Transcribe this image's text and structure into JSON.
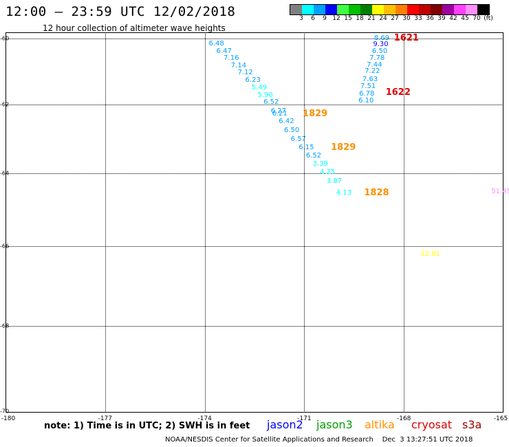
{
  "header": {
    "title": "12:00 – 23:59 UTC 12/02/2018",
    "subtitle": "12 hour collection of altimeter wave heights"
  },
  "legend": {
    "colors": [
      "#808080",
      "#00ffff",
      "#00a0ff",
      "#0000ff",
      "#40ff40",
      "#00c000",
      "#008000",
      "#ffff00",
      "#ffc000",
      "#ff8000",
      "#ff0000",
      "#c00000",
      "#800000",
      "#a000a0",
      "#ff40ff",
      "#ff90ff",
      "#000000"
    ],
    "labels": [
      "3",
      "6",
      "9",
      "12",
      "15",
      "18",
      "21",
      "24",
      "27",
      "30",
      "33",
      "36",
      "39",
      "42",
      "45",
      "70",
      "(ft)"
    ]
  },
  "axes": {
    "lat_labels": [
      "-60",
      "-62",
      "-64",
      "-66",
      "-68",
      "-70"
    ],
    "lon_labels": [
      "-180",
      "-177",
      "-174",
      "-171",
      "-168",
      "-165"
    ]
  },
  "observations": [
    {
      "v": "6.48",
      "lat": -60.16,
      "lon": -173.63,
      "c": "#00a0ff"
    },
    {
      "v": "6.47",
      "lat": -60.39,
      "lon": -173.4,
      "c": "#00a0ff"
    },
    {
      "v": "7.16",
      "lat": -60.61,
      "lon": -173.18,
      "c": "#00a0ff"
    },
    {
      "v": "7.14",
      "lat": -60.83,
      "lon": -172.96,
      "c": "#00a0ff"
    },
    {
      "v": "7.12",
      "lat": -61.05,
      "lon": -172.76,
      "c": "#00a0ff"
    },
    {
      "v": "6.23",
      "lat": -61.28,
      "lon": -172.53,
      "c": "#00a0ff"
    },
    {
      "v": "5.49",
      "lat": -61.5,
      "lon": -172.34,
      "c": "#00ffff"
    },
    {
      "v": "5.90",
      "lat": -61.72,
      "lon": -172.16,
      "c": "#00ffff"
    },
    {
      "v": "6.52",
      "lat": -61.94,
      "lon": -171.98,
      "c": "#00a0ff"
    },
    {
      "v": "6.27",
      "lat": -62.2,
      "lon": -171.76,
      "c": "#00a0ff"
    },
    {
      "v": "6.21",
      "lat": -62.28,
      "lon": -171.72,
      "c": "#00a0ff"
    },
    {
      "v": "6.42",
      "lat": -62.5,
      "lon": -171.52,
      "c": "#00a0ff"
    },
    {
      "v": "6.50",
      "lat": -62.76,
      "lon": -171.36,
      "c": "#00a0ff"
    },
    {
      "v": "6.57",
      "lat": -63.01,
      "lon": -171.16,
      "c": "#00a0ff"
    },
    {
      "v": "6.15",
      "lat": -63.26,
      "lon": -170.92,
      "c": "#00a0ff"
    },
    {
      "v": "6.52",
      "lat": -63.5,
      "lon": -170.7,
      "c": "#00a0ff"
    },
    {
      "v": "3.39",
      "lat": -63.74,
      "lon": -170.5,
      "c": "#00ffff"
    },
    {
      "v": "4.25",
      "lat": -63.98,
      "lon": -170.28,
      "c": "#00ffff"
    },
    {
      "v": "3.87",
      "lat": -64.22,
      "lon": -170.08,
      "c": "#00ffff"
    },
    {
      "v": "4.13",
      "lat": -64.54,
      "lon": -169.79,
      "c": "#00ffff"
    },
    {
      "v": "8.69",
      "lat": -59.97,
      "lon": -168.65,
      "c": "#00a0ff"
    },
    {
      "v": "9.30",
      "lat": -60.19,
      "lon": -168.68,
      "c": "#0000ff"
    },
    {
      "v": "6.50",
      "lat": -60.4,
      "lon": -168.71,
      "c": "#00a0ff"
    },
    {
      "v": "7.78",
      "lat": -60.6,
      "lon": -168.79,
      "c": "#00a0ff"
    },
    {
      "v": "7.44",
      "lat": -60.81,
      "lon": -168.87,
      "c": "#00a0ff"
    },
    {
      "v": "7.22",
      "lat": -61.01,
      "lon": -168.93,
      "c": "#00a0ff"
    },
    {
      "v": "7.63",
      "lat": -61.24,
      "lon": -169.0,
      "c": "#00a0ff"
    },
    {
      "v": "7.51",
      "lat": -61.46,
      "lon": -169.06,
      "c": "#00a0ff"
    },
    {
      "v": "6.78",
      "lat": -61.68,
      "lon": -169.1,
      "c": "#00a0ff"
    },
    {
      "v": "6.10",
      "lat": -61.9,
      "lon": -169.12,
      "c": "#00a0ff"
    },
    {
      "v": "51.45",
      "lat": -64.5,
      "lon": -165.12,
      "c": "#ff90ff"
    },
    {
      "v": "22.81",
      "lat": -66.2,
      "lon": -167.25,
      "c": "#ffff00"
    }
  ],
  "times": [
    {
      "v": "1621",
      "lat": -59.97,
      "lon": -168.05,
      "c": "#e00000"
    },
    {
      "v": "1622",
      "lat": -61.64,
      "lon": -168.3,
      "c": "#e00000"
    },
    {
      "v": "1829",
      "lat": -62.27,
      "lon": -170.8,
      "c": "#ff9000"
    },
    {
      "v": "1829",
      "lat": -63.26,
      "lon": -169.95,
      "c": "#ff9000"
    },
    {
      "v": "1828",
      "lat": -64.54,
      "lon": -168.95,
      "c": "#ff9000"
    }
  ],
  "footer": {
    "note": "note: 1) Time is in UTC; 2) SWH is in feet",
    "satellites": [
      {
        "name": "jason2",
        "color": "#0000ff"
      },
      {
        "name": "jason3",
        "color": "#00a000"
      },
      {
        "name": "altika",
        "color": "#ff9000"
      },
      {
        "name": "cryosat",
        "color": "#e00000"
      },
      {
        "name": "s3a",
        "color": "#a00000"
      }
    ],
    "credit": "NOAA/NESDIS Center for Satellite Applications and Research    Dec  3 13:27:51 UTC 2018"
  }
}
